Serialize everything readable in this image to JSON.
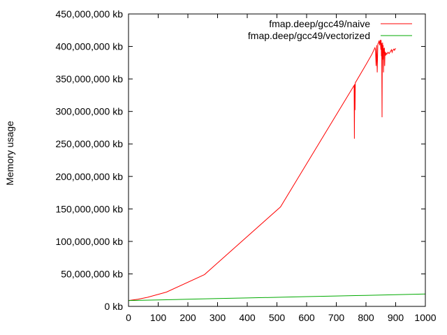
{
  "chart_data": {
    "type": "line",
    "title": "",
    "xlabel": "",
    "ylabel": "Memory usage",
    "xlim": [
      0,
      1000
    ],
    "ylim": [
      0,
      450000000
    ],
    "grid": false,
    "legend_position": "top-right",
    "x_ticks": [
      {
        "value": 0,
        "label": "0"
      },
      {
        "value": 100,
        "label": "100"
      },
      {
        "value": 200,
        "label": "200"
      },
      {
        "value": 300,
        "label": "300"
      },
      {
        "value": 400,
        "label": "400"
      },
      {
        "value": 500,
        "label": "500"
      },
      {
        "value": 600,
        "label": "600"
      },
      {
        "value": 700,
        "label": "700"
      },
      {
        "value": 800,
        "label": "800"
      },
      {
        "value": 900,
        "label": "900"
      },
      {
        "value": 1000,
        "label": "1000"
      }
    ],
    "y_ticks": [
      {
        "value": 0,
        "label": "0 kb"
      },
      {
        "value": 50000000,
        "label": "50,000,000 kb"
      },
      {
        "value": 100000000,
        "label": "100,000,000 kb"
      },
      {
        "value": 150000000,
        "label": "150,000,000 kb"
      },
      {
        "value": 200000000,
        "label": "200,000,000 kb"
      },
      {
        "value": 250000000,
        "label": "250,000,000 kb"
      },
      {
        "value": 300000000,
        "label": "300,000,000 kb"
      },
      {
        "value": 350000000,
        "label": "350,000,000 kb"
      },
      {
        "value": 400000000,
        "label": "400,000,000 kb"
      },
      {
        "value": 450000000,
        "label": "450,000,000 kb"
      }
    ],
    "series": [
      {
        "name": "fmap.deep/gcc49/naive",
        "color": "#ff0000",
        "points": [
          [
            0,
            9000000
          ],
          [
            32,
            11000000
          ],
          [
            64,
            14000000
          ],
          [
            128,
            22000000
          ],
          [
            256,
            49000000
          ],
          [
            512,
            153000000
          ],
          [
            760,
            340000000
          ],
          [
            761,
            258000000
          ],
          [
            762,
            342000000
          ],
          [
            763,
            302000000
          ],
          [
            764,
            344000000
          ],
          [
            800,
            372000000
          ],
          [
            820,
            388000000
          ],
          [
            830,
            398000000
          ],
          [
            832,
            395000000
          ],
          [
            834,
            370000000
          ],
          [
            836,
            402000000
          ],
          [
            838,
            360000000
          ],
          [
            840,
            404000000
          ],
          [
            842,
            405000000
          ],
          [
            844,
            409000000
          ],
          [
            846,
            402000000
          ],
          [
            848,
            410000000
          ],
          [
            850,
            395000000
          ],
          [
            851,
            410000000
          ],
          [
            852,
            385000000
          ],
          [
            853,
            405000000
          ],
          [
            854,
            291000000
          ],
          [
            855,
            398000000
          ],
          [
            856,
            406000000
          ],
          [
            857,
            380000000
          ],
          [
            858,
            402000000
          ],
          [
            859,
            360000000
          ],
          [
            860,
            397000000
          ],
          [
            861,
            390000000
          ],
          [
            862,
            398000000
          ],
          [
            863,
            370000000
          ],
          [
            864,
            392000000
          ],
          [
            866,
            386000000
          ],
          [
            868,
            390000000
          ],
          [
            870,
            388000000
          ],
          [
            874,
            391000000
          ],
          [
            878,
            389000000
          ],
          [
            882,
            392000000
          ],
          [
            886,
            395000000
          ],
          [
            888,
            391000000
          ],
          [
            890,
            394000000
          ],
          [
            894,
            396000000
          ],
          [
            896,
            394000000
          ],
          [
            900,
            397000000
          ]
        ]
      },
      {
        "name": "fmap.deep/gcc49/vectorized",
        "color": "#00aa00",
        "points": [
          [
            0,
            9000000
          ],
          [
            100,
            10000000
          ],
          [
            200,
            11000000
          ],
          [
            300,
            12000000
          ],
          [
            400,
            13000000
          ],
          [
            500,
            14000000
          ],
          [
            600,
            15000000
          ],
          [
            700,
            16000000
          ],
          [
            800,
            17000000
          ],
          [
            900,
            18000000
          ],
          [
            1000,
            19000000
          ]
        ]
      }
    ]
  }
}
